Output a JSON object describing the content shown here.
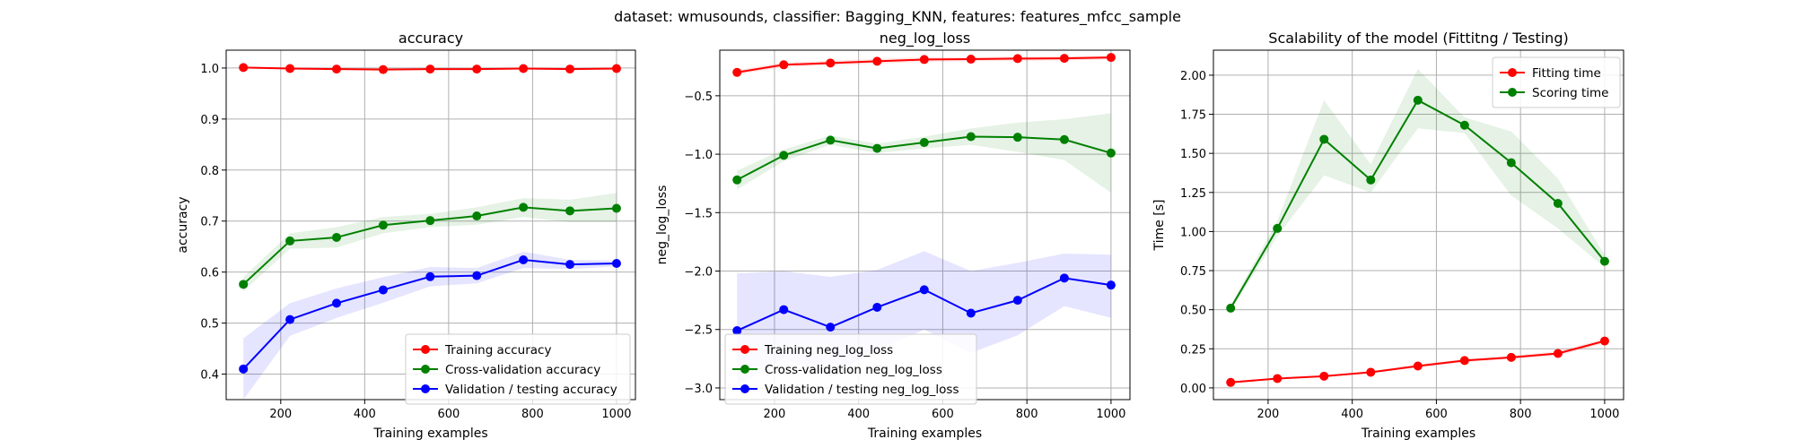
{
  "suptitle": "dataset: wmusounds, classifier: Bagging_KNN, features: features_mfcc_sample",
  "chart_data": [
    {
      "type": "line",
      "title": "accuracy",
      "xlabel": "Training examples",
      "ylabel": "accuracy",
      "xlim": [
        70,
        1045
      ],
      "ylim": [
        0.35,
        1.035
      ],
      "xticks": [
        200,
        400,
        600,
        800,
        1000
      ],
      "xtick_labels": [
        "200",
        "400",
        "600",
        "800",
        "1000"
      ],
      "yticks": [
        0.4,
        0.5,
        0.6,
        0.7,
        0.8,
        0.9,
        1.0
      ],
      "ytick_labels": [
        "0.4",
        "0.5",
        "0.6",
        "0.7",
        "0.8",
        "0.9",
        "1.0"
      ],
      "grid": true,
      "legend": "lower right",
      "x": [
        111,
        222,
        333,
        444,
        556,
        667,
        778,
        889,
        1000
      ],
      "series": [
        {
          "name": "Training accuracy",
          "color": "#ff0000",
          "values": [
            1.001,
            0.999,
            0.998,
            0.997,
            0.998,
            0.998,
            0.999,
            0.998,
            0.999
          ],
          "lower": [
            0.999,
            0.997,
            0.996,
            0.995,
            0.996,
            0.996,
            0.997,
            0.996,
            0.997
          ],
          "upper": [
            1.003,
            1.001,
            1.0,
            0.999,
            1.0,
            1.0,
            1.001,
            1.0,
            1.001
          ]
        },
        {
          "name": "Cross-validation accuracy",
          "color": "#008000",
          "values": [
            0.576,
            0.661,
            0.668,
            0.692,
            0.701,
            0.71,
            0.727,
            0.72,
            0.725
          ],
          "lower": [
            0.562,
            0.646,
            0.648,
            0.676,
            0.688,
            0.693,
            0.708,
            0.698,
            0.698
          ],
          "upper": [
            0.59,
            0.676,
            0.688,
            0.708,
            0.714,
            0.727,
            0.745,
            0.742,
            0.755
          ]
        },
        {
          "name": "Validation / testing accuracy",
          "color": "#0000ff",
          "values": [
            0.41,
            0.507,
            0.539,
            0.565,
            0.591,
            0.593,
            0.624,
            0.615,
            0.617
          ],
          "lower": [
            0.35,
            0.475,
            0.51,
            0.54,
            0.572,
            0.578,
            0.608,
            0.606,
            0.611
          ],
          "upper": [
            0.47,
            0.539,
            0.568,
            0.59,
            0.61,
            0.608,
            0.64,
            0.624,
            0.623
          ]
        }
      ]
    },
    {
      "type": "line",
      "title": "neg_log_loss",
      "xlabel": "Training examples",
      "ylabel": "neg_log_loss",
      "xlim": [
        70,
        1045
      ],
      "ylim": [
        -3.1,
        -0.11
      ],
      "xticks": [
        200,
        400,
        600,
        800,
        1000
      ],
      "xtick_labels": [
        "200",
        "400",
        "600",
        "800",
        "1000"
      ],
      "yticks": [
        -3.0,
        -2.5,
        -2.0,
        -1.5,
        -1.0,
        -0.5
      ],
      "ytick_labels": [
        "−3.0",
        "−2.5",
        "−2.0",
        "−1.5",
        "−1.0",
        "−0.5"
      ],
      "grid": true,
      "legend": "lower left",
      "x": [
        111,
        222,
        333,
        444,
        556,
        667,
        778,
        889,
        1000
      ],
      "series": [
        {
          "name": "Training neg_log_loss",
          "color": "#ff0000",
          "values": [
            -0.3,
            -0.235,
            -0.22,
            -0.205,
            -0.19,
            -0.187,
            -0.182,
            -0.18,
            -0.172
          ],
          "lower": [
            -0.32,
            -0.255,
            -0.24,
            -0.225,
            -0.21,
            -0.205,
            -0.2,
            -0.198,
            -0.19
          ],
          "upper": [
            -0.28,
            -0.215,
            -0.2,
            -0.185,
            -0.17,
            -0.169,
            -0.164,
            -0.162,
            -0.154
          ]
        },
        {
          "name": "Cross-validation neg_log_loss",
          "color": "#008000",
          "values": [
            -1.22,
            -1.01,
            -0.88,
            -0.95,
            -0.9,
            -0.85,
            -0.855,
            -0.875,
            -0.99
          ],
          "lower": [
            -1.3,
            -1.06,
            -0.92,
            -0.99,
            -0.95,
            -0.92,
            -0.98,
            -1.05,
            -1.33
          ],
          "upper": [
            -1.14,
            -0.96,
            -0.84,
            -0.91,
            -0.85,
            -0.78,
            -0.73,
            -0.7,
            -0.65
          ]
        },
        {
          "name": "Validation / testing neg_log_loss",
          "color": "#0000ff",
          "values": [
            -2.51,
            -2.33,
            -2.48,
            -2.31,
            -2.16,
            -2.36,
            -2.25,
            -2.06,
            -2.12
          ],
          "lower": [
            -2.98,
            -2.75,
            -2.9,
            -2.68,
            -2.5,
            -2.7,
            -2.55,
            -2.3,
            -2.4
          ],
          "upper": [
            -2.02,
            -2.0,
            -2.05,
            -1.99,
            -1.83,
            -2.0,
            -1.93,
            -1.85,
            -1.86
          ]
        }
      ]
    },
    {
      "type": "line",
      "title": "Scalability of the model (Fittitng / Testing)",
      "xlabel": "Training examples",
      "ylabel": "Time [s]",
      "xlim": [
        70,
        1045
      ],
      "ylim": [
        -0.075,
        2.16
      ],
      "xticks": [
        200,
        400,
        600,
        800,
        1000
      ],
      "xtick_labels": [
        "200",
        "400",
        "600",
        "800",
        "1000"
      ],
      "yticks": [
        0.0,
        0.25,
        0.5,
        0.75,
        1.0,
        1.25,
        1.5,
        1.75,
        2.0
      ],
      "ytick_labels": [
        "0.00",
        "0.25",
        "0.50",
        "0.75",
        "1.00",
        "1.25",
        "1.50",
        "1.75",
        "2.00"
      ],
      "grid": true,
      "legend": "upper right",
      "x": [
        111,
        222,
        333,
        444,
        556,
        667,
        778,
        889,
        1000
      ],
      "series": [
        {
          "name": "Fitting time",
          "color": "#ff0000",
          "values": [
            0.035,
            0.06,
            0.075,
            0.1,
            0.14,
            0.175,
            0.195,
            0.22,
            0.3
          ],
          "lower": [
            0.03,
            0.055,
            0.07,
            0.093,
            0.13,
            0.165,
            0.185,
            0.205,
            0.285
          ],
          "upper": [
            0.04,
            0.065,
            0.08,
            0.107,
            0.15,
            0.185,
            0.205,
            0.235,
            0.315
          ]
        },
        {
          "name": "Scoring time",
          "color": "#008000",
          "values": [
            0.51,
            1.02,
            1.59,
            1.33,
            1.84,
            1.68,
            1.44,
            1.18,
            0.81
          ],
          "lower": [
            0.49,
            0.97,
            1.36,
            1.25,
            1.66,
            1.63,
            1.23,
            1.02,
            0.77
          ],
          "upper": [
            0.53,
            1.07,
            1.84,
            1.43,
            2.04,
            1.73,
            1.64,
            1.34,
            0.85
          ]
        }
      ]
    }
  ]
}
